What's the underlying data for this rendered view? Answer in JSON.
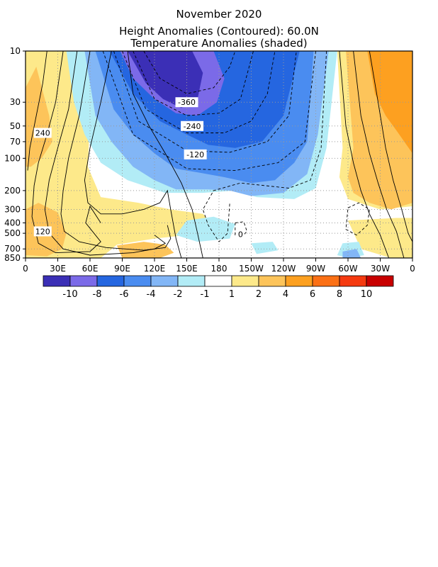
{
  "titles": {
    "line1": "November 2020",
    "line2": "Height Anomalies (Contoured): 60.0N",
    "line3": "Temperature Anomalies (shaded)"
  },
  "chart_data": {
    "type": "heatmap",
    "title": "November 2020",
    "subtitle": "Height Anomalies (Contoured): 60.0N",
    "subtitle2": "Temperature Anomalies (shaded)",
    "x_ticks": [
      "0",
      "30E",
      "60E",
      "90E",
      "120E",
      "150E",
      "180",
      "150W",
      "120W",
      "90W",
      "60W",
      "30W",
      "0"
    ],
    "x_lon_range": [
      0,
      360
    ],
    "y_ticks": [
      "10",
      "30",
      "50",
      "70",
      "100",
      "200",
      "300",
      "400",
      "500",
      "700",
      "850"
    ],
    "y_pressure_values": [
      10,
      30,
      50,
      70,
      100,
      200,
      300,
      400,
      500,
      700,
      850
    ],
    "y_scale": "log",
    "y_inverted": true,
    "grid": true,
    "colorbar_labels": [
      "-10",
      "-8",
      "-6",
      "-4",
      "-2",
      "-1",
      "1",
      "2",
      "4",
      "6",
      "8",
      "10"
    ],
    "colorbar_colors": [
      "#3b2fb6",
      "#7b6ae8",
      "#2566e0",
      "#4a8cf0",
      "#82b6f6",
      "#b2ecf6",
      "#ffffff",
      "#fde98a",
      "#fdc45a",
      "#fda020",
      "#fb7015",
      "#f53a10",
      "#c80000"
    ],
    "contour_labels": [
      {
        "text": "-360",
        "lon": 150,
        "p": 30
      },
      {
        "text": "-240",
        "lon": 155,
        "p": 50
      },
      {
        "text": "-120",
        "lon": 158,
        "p": 92
      },
      {
        "text": "240",
        "lon": 16,
        "p": 58
      },
      {
        "text": "120",
        "lon": 16,
        "p": 480
      },
      {
        "text": "0",
        "lon": 200,
        "p": 510
      }
    ],
    "shaded_regions": [
      {
        "anomaly": "-10 to -8",
        "lon_range": [
          85,
          160
        ],
        "p_range": [
          10,
          30
        ]
      },
      {
        "anomaly": "-8 to -6",
        "lon_range": [
          75,
          175
        ],
        "p_range": [
          10,
          40
        ]
      },
      {
        "anomaly": "-6 to -4",
        "lon_range": [
          70,
          195
        ],
        "p_range": [
          10,
          90
        ]
      },
      {
        "anomaly": "-4 to -2",
        "lon_range": [
          55,
          255
        ],
        "p_range": [
          10,
          210
        ]
      },
      {
        "anomaly": "-2 to -1",
        "lon_range": [
          45,
          265
        ],
        "p_range": [
          10,
          250
        ]
      },
      {
        "anomaly": "1 to 4",
        "lon_range": [
          0,
          60
        ],
        "p_range": [
          10,
          850
        ]
      },
      {
        "anomaly": "1 to 6",
        "lon_range": [
          290,
          360
        ],
        "p_range": [
          10,
          300
        ]
      }
    ]
  }
}
